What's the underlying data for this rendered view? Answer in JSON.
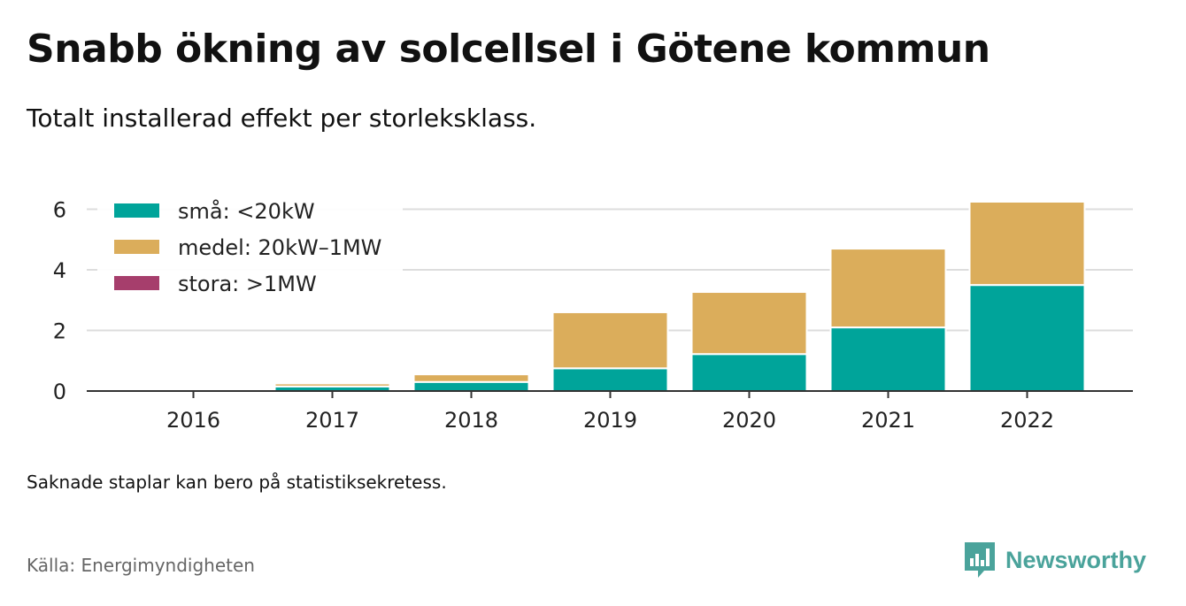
{
  "title": "Snabb ökning av solcellsel i Götene kommun",
  "subtitle": "Totalt installerad effekt per storleksklass.",
  "note": "Saknade staplar kan bero på statistiksekretess.",
  "source": "Källa: Energimyndigheten",
  "brand": {
    "name": "Newsworthy",
    "icon": "newsworthy-logo-icon",
    "color": "#4aa39b"
  },
  "chart_data": {
    "type": "bar",
    "stacked": true,
    "categories": [
      "2016",
      "2017",
      "2018",
      "2019",
      "2020",
      "2021",
      "2022"
    ],
    "series": [
      {
        "name": "små: <20kW",
        "color": "#00a49a",
        "values": [
          0.02,
          0.15,
          0.3,
          0.75,
          1.22,
          2.1,
          3.5
        ]
      },
      {
        "name": "medel: 20kW–1MW",
        "color": "#dbad5b",
        "values": [
          0.0,
          0.1,
          0.25,
          1.85,
          2.05,
          2.6,
          2.75
        ]
      },
      {
        "name": "stora: >1MW",
        "color": "#a63e6c",
        "values": [
          0,
          0,
          0,
          0,
          0,
          0,
          0
        ]
      }
    ],
    "yticks": [
      0,
      2,
      4,
      6
    ],
    "ylim": [
      0,
      6.6
    ],
    "grid": true,
    "legend_position": "top-left"
  }
}
